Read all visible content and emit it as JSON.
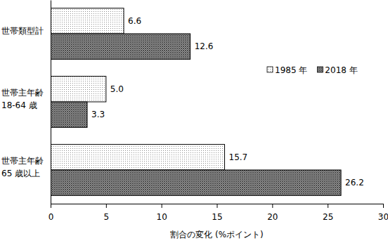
{
  "chart_data": {
    "type": "bar",
    "orientation": "horizontal",
    "categories": [
      "世帯類型計",
      "世帯主年齢\n18-64 歳",
      "世帯主年齢\n65 歳以上"
    ],
    "series": [
      {
        "name": "1985 年",
        "color": "#8c8c8c",
        "values": [
          6.6,
          5.0,
          15.7
        ],
        "value_labels": [
          "6.6",
          "5.0",
          "15.7"
        ]
      },
      {
        "name": "2018 年",
        "color": "#4d4d4d",
        "values": [
          12.6,
          3.3,
          26.2
        ],
        "value_labels": [
          "12.6",
          "3.3",
          "26.2"
        ]
      }
    ],
    "xlabel": "割合の変化 (%ポイント)",
    "xlim": [
      0,
      30
    ],
    "xticks": [
      0,
      5,
      10,
      15,
      20,
      25,
      30
    ],
    "data_labels": true,
    "legend": "right",
    "grid": false
  }
}
